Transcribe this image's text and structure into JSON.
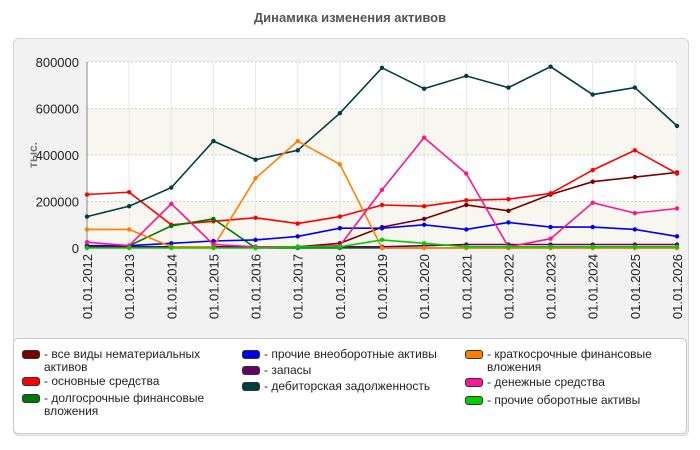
{
  "chart_data": {
    "type": "line",
    "title": "Динамика изменения активов",
    "ylabel": "тыс.",
    "ylim": [
      0,
      800000
    ],
    "yticks": [
      "0",
      "200000",
      "400000",
      "600000",
      "800000"
    ],
    "grid": "horizontal dashed",
    "legend_position": "bottom",
    "categories": [
      "01.01.2012",
      "01.01.2013",
      "01.01.2014",
      "01.01.2015",
      "01.01.2016",
      "01.01.2017",
      "01.01.2018",
      "01.01.2019",
      "01.01.2020",
      "01.01.2021",
      "01.01.2022",
      "01.01.2023",
      "01.01.2024",
      "01.01.2025",
      "01.01.2026"
    ],
    "series": [
      {
        "name": "все виды нематериальных активов",
        "color": "#7a0000",
        "values": [
          5000,
          5000,
          5000,
          5000,
          5000,
          5000,
          20000,
          90000,
          125000,
          185000,
          160000,
          230000,
          285000,
          305000,
          325000
        ]
      },
      {
        "name": "основные средства",
        "color": "#ff0000",
        "values": [
          230000,
          240000,
          100000,
          115000,
          130000,
          105000,
          135000,
          185000,
          180000,
          205000,
          210000,
          235000,
          335000,
          420000,
          320000
        ]
      },
      {
        "name": "долгосрочные финансовые вложения",
        "color": "#007700",
        "values": [
          5000,
          10000,
          95000,
          125000,
          0,
          0,
          0,
          0,
          0,
          0,
          0,
          0,
          0,
          0,
          0
        ]
      },
      {
        "name": "прочие внеоборотные активы",
        "color": "#0000ee",
        "values": [
          10000,
          10000,
          20000,
          30000,
          35000,
          50000,
          85000,
          85000,
          100000,
          80000,
          110000,
          90000,
          90000,
          80000,
          50000
        ]
      },
      {
        "name": "запасы",
        "color": "#660066",
        "values": [
          5000,
          5000,
          5000,
          5000,
          5000,
          5000,
          5000,
          5000,
          10000,
          15000,
          15000,
          15000,
          15000,
          15000,
          15000
        ]
      },
      {
        "name": "дебиторская задолженность",
        "color": "#003d40",
        "values": [
          135000,
          180000,
          260000,
          460000,
          380000,
          420000,
          580000,
          775000,
          685000,
          740000,
          690000,
          780000,
          660000,
          690000,
          525000
        ]
      },
      {
        "name": "краткосрочные финансовые вложения",
        "color": "#ff8000",
        "values": [
          80000,
          80000,
          5000,
          5000,
          300000,
          460000,
          360000,
          0,
          0,
          0,
          0,
          0,
          0,
          0,
          0
        ]
      },
      {
        "name": "денежные средства",
        "color": "#ff1493",
        "values": [
          25000,
          10000,
          190000,
          15000,
          5000,
          5000,
          10000,
          250000,
          475000,
          320000,
          5000,
          40000,
          195000,
          150000,
          170000
        ]
      },
      {
        "name": "прочие оборотные активы",
        "color": "#00cc00",
        "values": [
          0,
          0,
          0,
          0,
          0,
          5000,
          5000,
          35000,
          20000,
          5000,
          5000,
          5000,
          5000,
          5000,
          5000
        ]
      }
    ]
  }
}
